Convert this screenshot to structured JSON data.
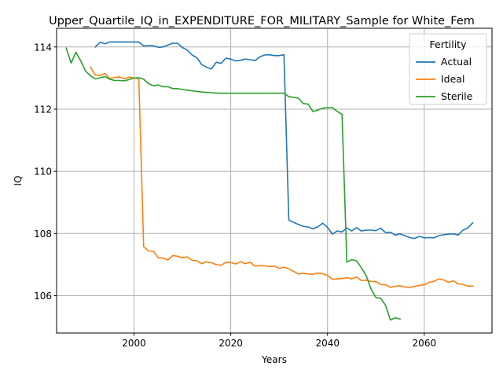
{
  "chart_data": {
    "type": "line",
    "title": "Upper_Quartile_IQ_in_EXPENDITURE_FOR_MILITARY_Sample for White_Fem",
    "xlabel": "Years",
    "ylabel": "IQ",
    "xlim": [
      1984,
      2074
    ],
    "ylim": [
      104.8,
      114.6
    ],
    "x_ticks": [
      2000,
      2020,
      2040,
      2060
    ],
    "y_ticks": [
      106,
      108,
      110,
      112,
      114
    ],
    "grid": true,
    "legend": {
      "title": "Fertility",
      "position": "upper right"
    },
    "series": [
      {
        "name": "Actual",
        "color": "#1f77b4",
        "points": [
          [
            1992,
            114.0
          ],
          [
            1993,
            114.15
          ],
          [
            1994,
            114.1
          ],
          [
            1995,
            114.16
          ],
          [
            1996,
            114.16
          ],
          [
            1997,
            114.16
          ],
          [
            1998,
            114.16
          ],
          [
            1999,
            114.16
          ],
          [
            2000,
            114.16
          ],
          [
            2001,
            114.16
          ],
          [
            2002,
            114.03
          ],
          [
            2003,
            114.04
          ],
          [
            2004,
            114.04
          ],
          [
            2005,
            113.99
          ],
          [
            2006,
            114.0
          ],
          [
            2007,
            114.06
          ],
          [
            2008,
            114.12
          ],
          [
            2009,
            114.12
          ],
          [
            2010,
            113.98
          ],
          [
            2011,
            113.9
          ],
          [
            2012,
            113.74
          ],
          [
            2013,
            113.65
          ],
          [
            2014,
            113.43
          ],
          [
            2015,
            113.35
          ],
          [
            2016,
            113.29
          ],
          [
            2017,
            113.51
          ],
          [
            2018,
            113.47
          ],
          [
            2019,
            113.64
          ],
          [
            2020,
            113.61
          ],
          [
            2021,
            113.55
          ],
          [
            2022,
            113.57
          ],
          [
            2023,
            113.61
          ],
          [
            2024,
            113.59
          ],
          [
            2025,
            113.56
          ],
          [
            2026,
            113.68
          ],
          [
            2027,
            113.74
          ],
          [
            2028,
            113.75
          ],
          [
            2029,
            113.72
          ],
          [
            2030,
            113.72
          ],
          [
            2031,
            113.75
          ],
          [
            2032,
            108.43
          ],
          [
            2033,
            108.36
          ],
          [
            2034,
            108.29
          ],
          [
            2035,
            108.23
          ],
          [
            2036,
            108.21
          ],
          [
            2037,
            108.15
          ],
          [
            2038,
            108.22
          ],
          [
            2039,
            108.33
          ],
          [
            2040,
            108.2
          ],
          [
            2041,
            107.98
          ],
          [
            2042,
            108.08
          ],
          [
            2043,
            108.05
          ],
          [
            2044,
            108.18
          ],
          [
            2045,
            108.08
          ],
          [
            2046,
            108.19
          ],
          [
            2047,
            108.08
          ],
          [
            2048,
            108.11
          ],
          [
            2049,
            108.11
          ],
          [
            2050,
            108.09
          ],
          [
            2051,
            108.17
          ],
          [
            2052,
            108.03
          ],
          [
            2053,
            108.04
          ],
          [
            2054,
            107.95
          ],
          [
            2055,
            107.99
          ],
          [
            2056,
            107.93
          ],
          [
            2057,
            107.87
          ],
          [
            2058,
            107.84
          ],
          [
            2059,
            107.91
          ],
          [
            2060,
            107.86
          ],
          [
            2061,
            107.87
          ],
          [
            2062,
            107.86
          ],
          [
            2063,
            107.93
          ],
          [
            2064,
            107.96
          ],
          [
            2065,
            107.98
          ],
          [
            2066,
            107.99
          ],
          [
            2067,
            107.95
          ],
          [
            2068,
            108.11
          ],
          [
            2069,
            108.18
          ],
          [
            2070,
            108.34
          ]
        ]
      },
      {
        "name": "Ideal",
        "color": "#ff7f0e",
        "points": [
          [
            1991,
            113.35
          ],
          [
            1992,
            113.1
          ],
          [
            1993,
            113.08
          ],
          [
            1994,
            113.15
          ],
          [
            1995,
            112.98
          ],
          [
            1996,
            113.02
          ],
          [
            1997,
            113.04
          ],
          [
            1998,
            112.97
          ],
          [
            1999,
            113.03
          ],
          [
            2000,
            113.0
          ],
          [
            2001,
            112.98
          ],
          [
            2002,
            107.57
          ],
          [
            2003,
            107.44
          ],
          [
            2004,
            107.43
          ],
          [
            2005,
            107.22
          ],
          [
            2006,
            107.21
          ],
          [
            2007,
            107.15
          ],
          [
            2008,
            107.29
          ],
          [
            2009,
            107.27
          ],
          [
            2010,
            107.22
          ],
          [
            2011,
            107.25
          ],
          [
            2012,
            107.14
          ],
          [
            2013,
            107.12
          ],
          [
            2014,
            107.03
          ],
          [
            2015,
            107.09
          ],
          [
            2016,
            107.06
          ],
          [
            2017,
            107.0
          ],
          [
            2018,
            106.98
          ],
          [
            2019,
            107.07
          ],
          [
            2020,
            107.07
          ],
          [
            2021,
            107.02
          ],
          [
            2022,
            107.09
          ],
          [
            2023,
            107.03
          ],
          [
            2024,
            107.08
          ],
          [
            2025,
            106.95
          ],
          [
            2026,
            106.97
          ],
          [
            2027,
            106.96
          ],
          [
            2028,
            106.94
          ],
          [
            2029,
            106.95
          ],
          [
            2030,
            106.88
          ],
          [
            2031,
            106.92
          ],
          [
            2032,
            106.86
          ],
          [
            2033,
            106.78
          ],
          [
            2034,
            106.7
          ],
          [
            2035,
            106.72
          ],
          [
            2036,
            106.7
          ],
          [
            2037,
            106.69
          ],
          [
            2038,
            106.73
          ],
          [
            2039,
            106.71
          ],
          [
            2040,
            106.65
          ],
          [
            2041,
            106.53
          ],
          [
            2042,
            106.54
          ],
          [
            2043,
            106.55
          ],
          [
            2044,
            106.58
          ],
          [
            2045,
            106.54
          ],
          [
            2046,
            106.6
          ],
          [
            2047,
            106.49
          ],
          [
            2048,
            106.5
          ],
          [
            2049,
            106.46
          ],
          [
            2050,
            106.45
          ],
          [
            2051,
            106.36
          ],
          [
            2052,
            106.35
          ],
          [
            2053,
            106.27
          ],
          [
            2054,
            106.3
          ],
          [
            2055,
            106.32
          ],
          [
            2056,
            106.28
          ],
          [
            2057,
            106.27
          ],
          [
            2058,
            106.3
          ],
          [
            2059,
            106.33
          ],
          [
            2060,
            106.35
          ],
          [
            2061,
            106.43
          ],
          [
            2062,
            106.46
          ],
          [
            2063,
            106.54
          ],
          [
            2064,
            106.51
          ],
          [
            2065,
            106.43
          ],
          [
            2066,
            106.48
          ],
          [
            2067,
            106.38
          ],
          [
            2068,
            106.36
          ],
          [
            2069,
            106.31
          ],
          [
            2070,
            106.31
          ]
        ]
      },
      {
        "name": "Sterile",
        "color": "#2ca02c",
        "points": [
          [
            1986,
            113.96
          ],
          [
            1987,
            113.48
          ],
          [
            1988,
            113.83
          ],
          [
            1989,
            113.55
          ],
          [
            1990,
            113.22
          ],
          [
            1991,
            113.07
          ],
          [
            1992,
            112.97
          ],
          [
            1993,
            113.01
          ],
          [
            1994,
            113.05
          ],
          [
            1995,
            112.96
          ],
          [
            1996,
            112.92
          ],
          [
            1997,
            112.92
          ],
          [
            1998,
            112.91
          ],
          [
            1999,
            112.95
          ],
          [
            2000,
            113.0
          ],
          [
            2001,
            113.01
          ],
          [
            2002,
            112.96
          ],
          [
            2003,
            112.82
          ],
          [
            2004,
            112.75
          ],
          [
            2005,
            112.78
          ],
          [
            2006,
            112.72
          ],
          [
            2007,
            112.72
          ],
          [
            2008,
            112.66
          ],
          [
            2009,
            112.66
          ],
          [
            2010,
            112.63
          ],
          [
            2011,
            112.61
          ],
          [
            2012,
            112.59
          ],
          [
            2013,
            112.57
          ],
          [
            2014,
            112.55
          ],
          [
            2015,
            112.54
          ],
          [
            2016,
            112.53
          ],
          [
            2017,
            112.52
          ],
          [
            2018,
            112.51
          ],
          [
            2019,
            112.51
          ],
          [
            2020,
            112.51
          ],
          [
            2021,
            112.51
          ],
          [
            2022,
            112.51
          ],
          [
            2023,
            112.51
          ],
          [
            2024,
            112.51
          ],
          [
            2025,
            112.51
          ],
          [
            2026,
            112.51
          ],
          [
            2027,
            112.51
          ],
          [
            2028,
            112.51
          ],
          [
            2029,
            112.51
          ],
          [
            2030,
            112.51
          ],
          [
            2031,
            112.51
          ],
          [
            2032,
            112.4
          ],
          [
            2033,
            112.38
          ],
          [
            2034,
            112.35
          ],
          [
            2035,
            112.18
          ],
          [
            2036,
            112.16
          ],
          [
            2037,
            111.92
          ],
          [
            2038,
            111.97
          ],
          [
            2039,
            112.03
          ],
          [
            2040,
            112.05
          ],
          [
            2041,
            112.05
          ],
          [
            2042,
            111.93
          ],
          [
            2043,
            111.83
          ],
          [
            2044,
            107.08
          ],
          [
            2045,
            107.16
          ],
          [
            2046,
            107.12
          ],
          [
            2047,
            106.9
          ],
          [
            2048,
            106.64
          ],
          [
            2049,
            106.22
          ],
          [
            2050,
            105.94
          ],
          [
            2051,
            105.92
          ],
          [
            2052,
            105.69
          ],
          [
            2053,
            105.22
          ],
          [
            2054,
            105.29
          ],
          [
            2055,
            105.25
          ]
        ]
      }
    ]
  }
}
